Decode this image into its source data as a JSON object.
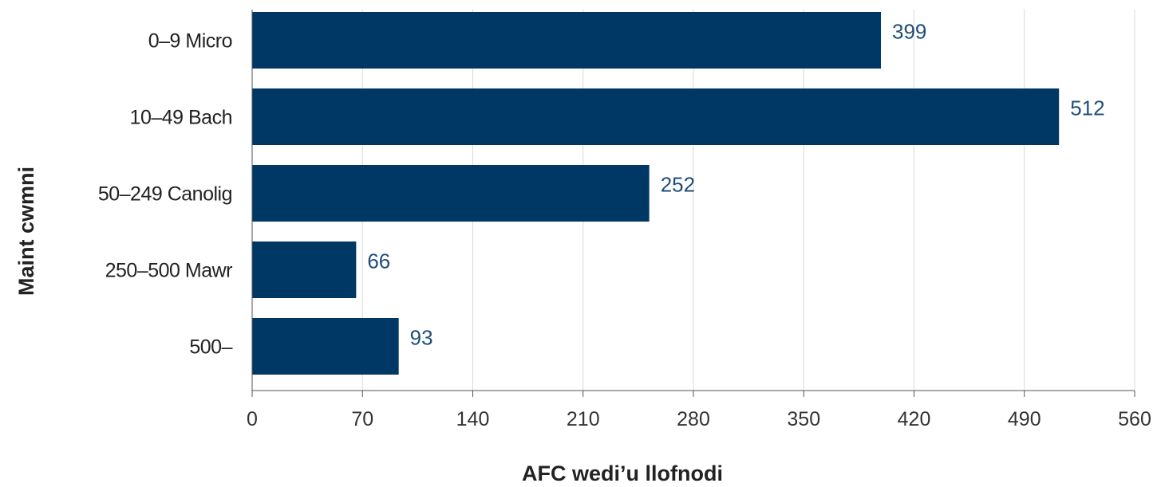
{
  "chart_data": {
    "type": "bar",
    "orientation": "horizontal",
    "categories": [
      "0–9 Micro",
      "10–49 Bach",
      "50–249 Canolig",
      "250–500 Mawr",
      "500–"
    ],
    "values": [
      399,
      512,
      252,
      66,
      93
    ],
    "title": "",
    "xlabel": "AFC wedi’u llofnodi",
    "ylabel": "Maint cwmni",
    "xlim": [
      0,
      560
    ],
    "xticks": [
      "0",
      "70",
      "140",
      "210",
      "280",
      "350",
      "420",
      "490",
      "560"
    ],
    "grid": "vertical",
    "data_labels": true,
    "legend": "none"
  },
  "colors": {
    "bar": "#003865",
    "data_label": "#1f4e79",
    "grid": "#d9d9d9",
    "axis": "#555555"
  }
}
